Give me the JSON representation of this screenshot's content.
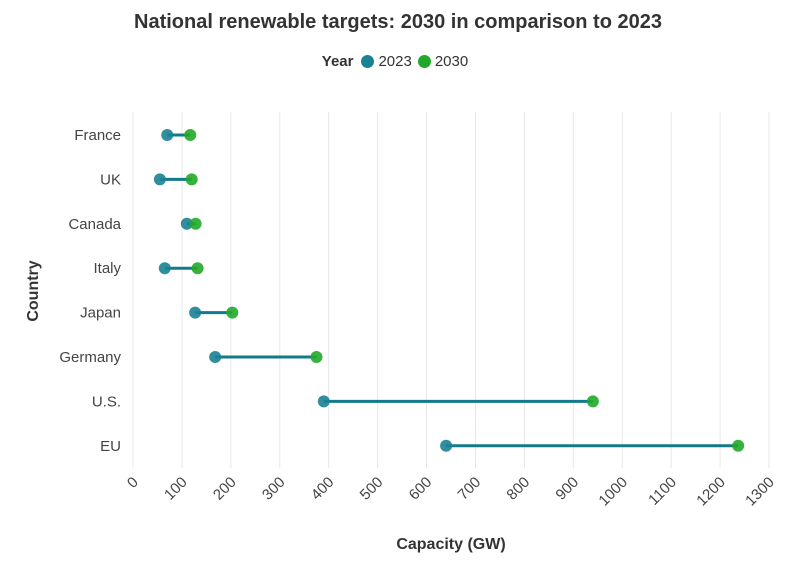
{
  "chart_data": {
    "type": "dumbbell",
    "title": "National renewable targets: 2030 in comparison to 2023",
    "xlabel": "Capacity (GW)",
    "ylabel": "Country",
    "xlim": [
      0,
      1300
    ],
    "x_ticks": [
      0,
      100,
      200,
      300,
      400,
      500,
      600,
      700,
      800,
      900,
      1000,
      1100,
      1200,
      1300
    ],
    "grid": true,
    "legend": {
      "title": "Year",
      "placement": "top-center",
      "items": [
        {
          "name": "2023",
          "color": "#1a8295"
        },
        {
          "name": "2030",
          "color": "#22a829"
        }
      ]
    },
    "line_color": "#127a8a",
    "categories": [
      "France",
      "UK",
      "Canada",
      "Italy",
      "Japan",
      "Germany",
      "U.S.",
      "EU"
    ],
    "series": [
      {
        "name": "2023",
        "values": [
          70,
          55,
          110,
          65,
          127,
          168,
          390,
          640
        ]
      },
      {
        "name": "2030",
        "values": [
          117,
          120,
          128,
          132,
          203,
          375,
          940,
          1237
        ]
      }
    ]
  }
}
